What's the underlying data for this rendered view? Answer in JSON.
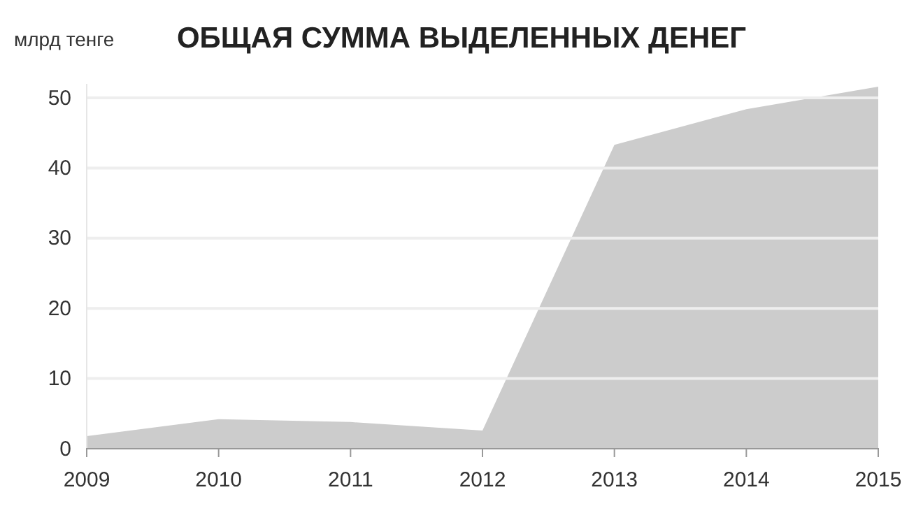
{
  "chart_data": {
    "type": "area",
    "title": "ОБЩАЯ СУММА ВЫДЕЛЕННЫХ ДЕНЕГ",
    "ylabel": "млрд тенге",
    "x": [
      2009,
      2010,
      2011,
      2012,
      2013,
      2014,
      2015
    ],
    "series": [
      {
        "color": "#cccccc",
        "values": [
          1.8,
          4.2,
          3.8,
          2.6,
          43.3,
          48.4,
          51.6
        ]
      }
    ],
    "xlim": [
      2009,
      2015
    ],
    "xticks": [
      2009,
      2010,
      2011,
      2012,
      2013,
      2014,
      2015
    ],
    "ylim": [
      0,
      52
    ],
    "yticks": [
      0,
      10,
      20,
      30,
      40,
      50
    ],
    "grid": "y"
  }
}
